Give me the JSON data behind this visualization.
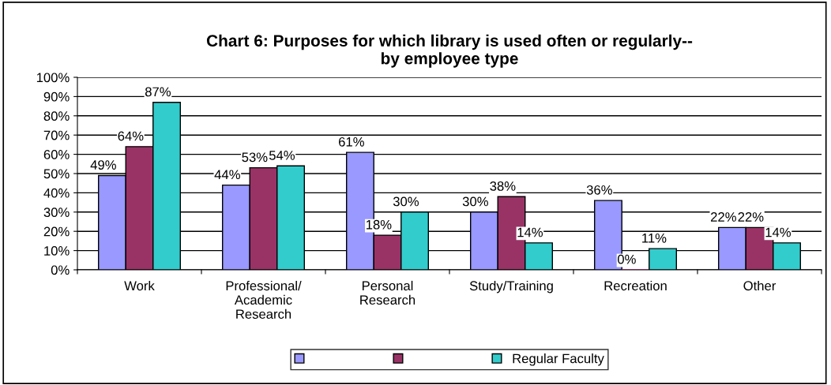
{
  "chart_data": {
    "type": "bar",
    "title": "Chart 6: Purposes for which library is used often or regularly--\nby employee type",
    "categories": [
      "Work",
      "Professional/\nAcademic\nResearch",
      "Personal\nResearch",
      "Study/Training",
      "Recreation",
      "Other"
    ],
    "series": [
      {
        "color": "#9999ff",
        "values": [
          49,
          44,
          61,
          30,
          36,
          22
        ],
        "value_labels": [
          "49%",
          "44%",
          "61%",
          "30%",
          "36%",
          "22%"
        ]
      },
      {
        "color": "#993366",
        "values": [
          64,
          53,
          18,
          38,
          0,
          22
        ],
        "value_labels": [
          "64%",
          "53%",
          "18%",
          "38%",
          "0%",
          "22%"
        ]
      },
      {
        "name": "Regular Faculty",
        "color": "#33cccc",
        "values": [
          87,
          54,
          30,
          14,
          11,
          14
        ],
        "value_labels": [
          "87%",
          "54%",
          "30%",
          "14%",
          "11%",
          "14%"
        ]
      }
    ],
    "ylim": [
      0,
      100
    ],
    "yticks": [
      {
        "value": 0,
        "label": "0%"
      },
      {
        "value": 10,
        "label": "10%"
      },
      {
        "value": 20,
        "label": "20%"
      },
      {
        "value": 30,
        "label": "30%"
      },
      {
        "value": 40,
        "label": "40%"
      },
      {
        "value": 50,
        "label": "50%"
      },
      {
        "value": 60,
        "label": "60%"
      },
      {
        "value": 70,
        "label": "70%"
      },
      {
        "value": 80,
        "label": "80%"
      },
      {
        "value": 90,
        "label": "90%"
      },
      {
        "value": 100,
        "label": "100%"
      }
    ],
    "grid": "y",
    "legend": "bottom"
  }
}
